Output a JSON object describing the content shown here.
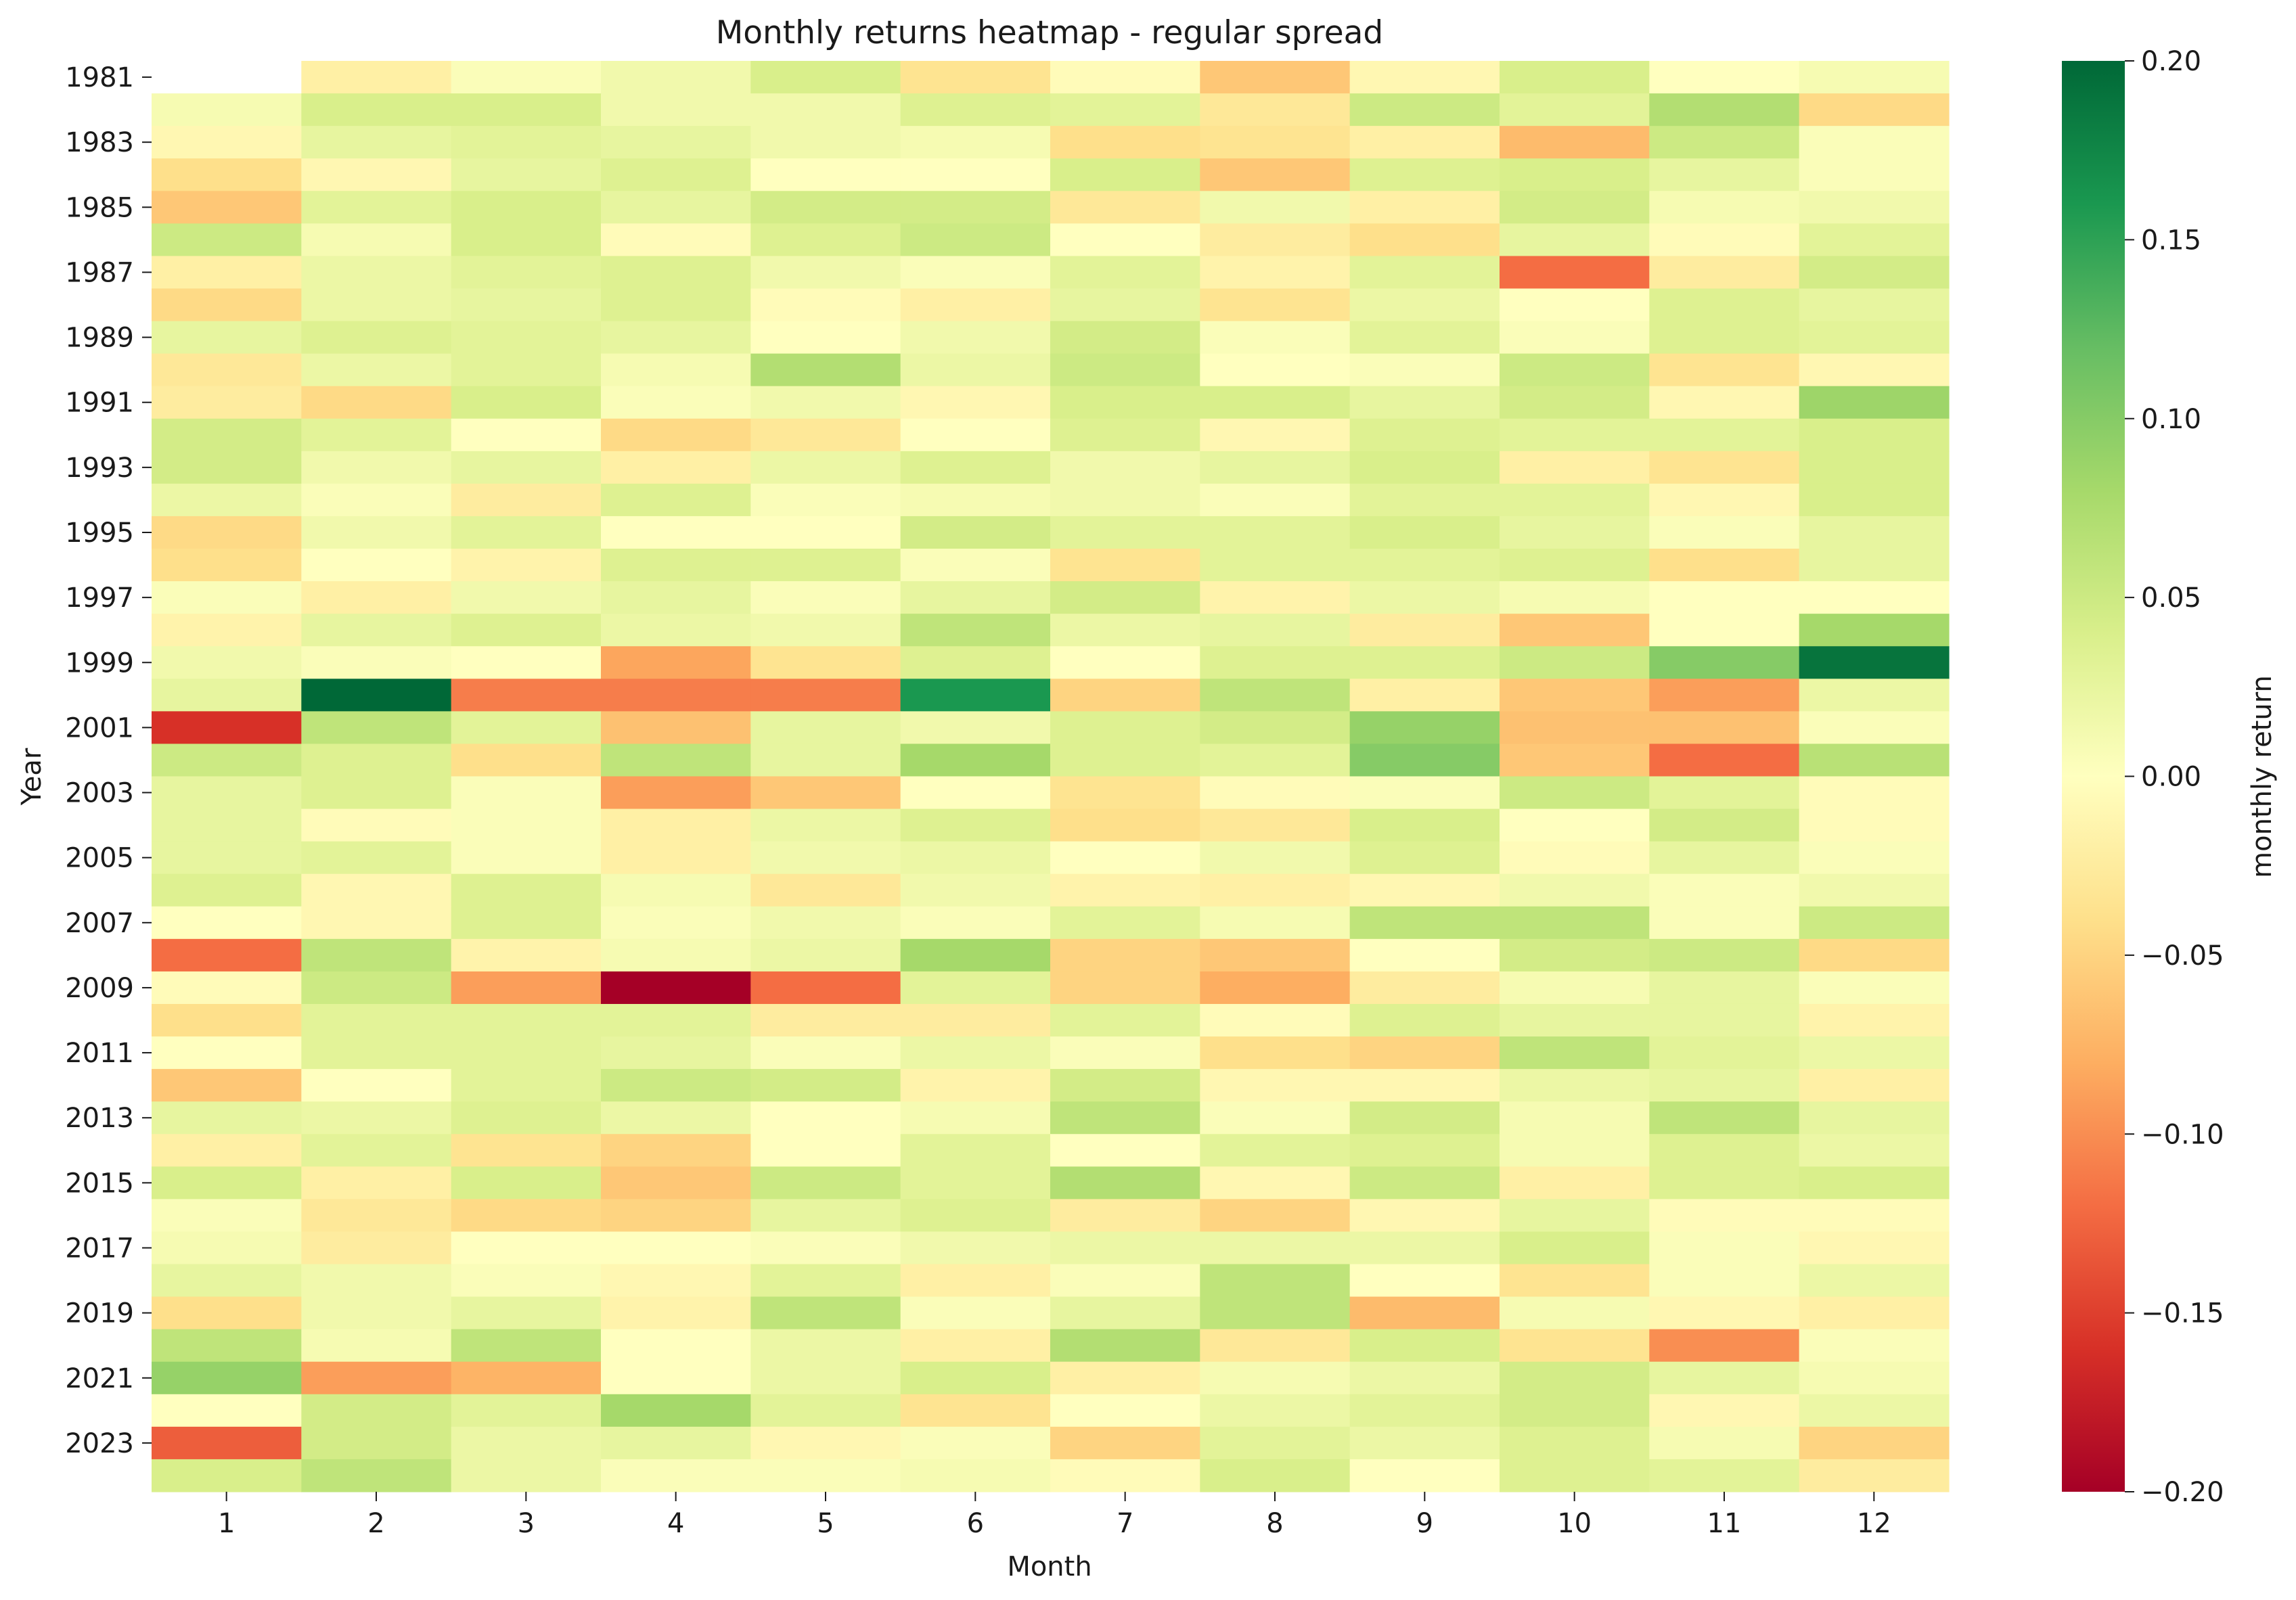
{
  "chart_data": {
    "type": "heatmap",
    "title": "Monthly returns heatmap - regular spread",
    "xlabel": "Month",
    "ylabel": "Year",
    "colorbar_label": "monthly return",
    "colormap": "RdYlGn",
    "vmin": -0.2,
    "vmax": 0.2,
    "colorbar_ticks": [
      "0.20",
      "0.15",
      "0.10",
      "0.05",
      "0.00",
      "−0.05",
      "−0.10",
      "−0.15",
      "−0.20"
    ],
    "colorbar_tick_values": [
      0.2,
      0.15,
      0.1,
      0.05,
      0.0,
      -0.05,
      -0.1,
      -0.15,
      -0.2
    ],
    "x": [
      1,
      2,
      3,
      4,
      5,
      6,
      7,
      8,
      9,
      10,
      11,
      12
    ],
    "x_tick_labels": [
      "1",
      "2",
      "3",
      "4",
      "5",
      "6",
      "7",
      "8",
      "9",
      "10",
      "11",
      "12"
    ],
    "y": [
      1981,
      1982,
      1983,
      1984,
      1985,
      1986,
      1987,
      1988,
      1989,
      1990,
      1991,
      1992,
      1993,
      1994,
      1995,
      1996,
      1997,
      1998,
      1999,
      2000,
      2001,
      2002,
      2003,
      2004,
      2005,
      2006,
      2007,
      2008,
      2009,
      2010,
      2011,
      2012,
      2013,
      2014,
      2015,
      2016,
      2017,
      2018,
      2019,
      2020,
      2021,
      2022,
      2023,
      2024
    ],
    "y_tick_labels": [
      "1981",
      "1983",
      "1985",
      "1987",
      "1989",
      "1991",
      "1993",
      "1995",
      "1997",
      "1999",
      "2001",
      "2003",
      "2005",
      "2007",
      "2009",
      "2011",
      "2013",
      "2015",
      "2017",
      "2019",
      "2021",
      "2023"
    ],
    "values": [
      [
        null,
        -0.02,
        0.005,
        0.015,
        0.04,
        -0.035,
        -0.005,
        -0.06,
        -0.01,
        0.04,
        0.0,
        0.01
      ],
      [
        0.01,
        0.04,
        0.04,
        0.015,
        0.015,
        0.035,
        0.03,
        -0.03,
        0.05,
        0.03,
        0.07,
        -0.045
      ],
      [
        -0.01,
        0.025,
        0.03,
        0.025,
        0.015,
        0.01,
        -0.04,
        -0.035,
        -0.02,
        -0.07,
        0.05,
        0.005
      ],
      [
        -0.04,
        -0.01,
        0.025,
        0.035,
        0.0,
        0.0,
        0.04,
        -0.06,
        0.035,
        0.04,
        0.025,
        0.005
      ],
      [
        -0.06,
        0.03,
        0.04,
        0.025,
        0.045,
        0.045,
        -0.03,
        0.015,
        -0.02,
        0.045,
        0.01,
        0.015
      ],
      [
        0.05,
        0.01,
        0.04,
        -0.005,
        0.035,
        0.05,
        0.0,
        -0.025,
        -0.04,
        0.025,
        -0.005,
        0.03
      ],
      [
        -0.02,
        0.02,
        0.03,
        0.035,
        0.015,
        0.005,
        0.03,
        -0.015,
        0.03,
        -0.12,
        -0.025,
        0.045
      ],
      [
        -0.045,
        0.02,
        0.025,
        0.035,
        -0.005,
        -0.02,
        0.025,
        -0.035,
        0.02,
        0.0,
        0.035,
        0.025
      ],
      [
        0.025,
        0.035,
        0.03,
        0.025,
        0.0,
        0.015,
        0.045,
        0.005,
        0.03,
        0.005,
        0.035,
        0.03
      ],
      [
        -0.03,
        0.02,
        0.03,
        0.01,
        0.07,
        0.02,
        0.05,
        0.0,
        0.005,
        0.05,
        -0.035,
        -0.01
      ],
      [
        -0.025,
        -0.045,
        0.04,
        0.005,
        0.015,
        -0.01,
        0.04,
        0.04,
        0.025,
        0.045,
        -0.01,
        0.085
      ],
      [
        0.045,
        0.03,
        0.0,
        -0.045,
        -0.03,
        0.0,
        0.035,
        -0.01,
        0.035,
        0.03,
        0.03,
        0.04
      ],
      [
        0.045,
        0.015,
        0.025,
        -0.02,
        0.02,
        0.035,
        0.015,
        0.025,
        0.04,
        -0.02,
        -0.035,
        0.04
      ],
      [
        0.02,
        0.005,
        -0.025,
        0.035,
        0.005,
        0.01,
        0.015,
        0.005,
        0.03,
        0.03,
        -0.01,
        0.04
      ],
      [
        -0.045,
        0.015,
        0.03,
        0.0,
        0.0,
        0.045,
        0.03,
        0.03,
        0.04,
        0.025,
        0.005,
        0.025
      ],
      [
        -0.04,
        0.0,
        -0.015,
        0.035,
        0.035,
        0.005,
        -0.035,
        0.03,
        0.03,
        0.035,
        -0.04,
        0.025
      ],
      [
        0.005,
        -0.02,
        0.015,
        0.025,
        0.005,
        0.025,
        0.045,
        -0.015,
        0.02,
        0.01,
        0.0,
        0.0
      ],
      [
        -0.015,
        0.025,
        0.035,
        0.02,
        0.015,
        0.06,
        0.02,
        0.025,
        -0.025,
        -0.06,
        0.0,
        0.08
      ],
      [
        0.015,
        0.005,
        0.0,
        -0.085,
        -0.035,
        0.035,
        0.0,
        0.035,
        0.035,
        0.05,
        0.1,
        0.19
      ],
      [
        0.025,
        0.2,
        -0.11,
        -0.11,
        -0.11,
        0.16,
        -0.05,
        0.06,
        -0.02,
        -0.06,
        -0.09,
        0.02
      ],
      [
        -0.16,
        0.06,
        0.03,
        -0.065,
        0.025,
        0.015,
        0.035,
        0.045,
        0.09,
        -0.065,
        -0.065,
        0.005
      ],
      [
        0.05,
        0.035,
        -0.04,
        0.06,
        0.025,
        0.08,
        0.035,
        0.03,
        0.1,
        -0.06,
        -0.12,
        0.065
      ],
      [
        0.025,
        0.035,
        0.005,
        -0.09,
        -0.06,
        0.0,
        -0.035,
        -0.005,
        0.005,
        0.05,
        0.03,
        -0.005
      ],
      [
        0.025,
        -0.005,
        0.005,
        -0.02,
        0.02,
        0.035,
        -0.04,
        -0.03,
        0.04,
        0.0,
        0.045,
        -0.005
      ],
      [
        0.025,
        0.03,
        0.005,
        -0.02,
        0.015,
        0.02,
        0.0,
        0.015,
        0.035,
        -0.005,
        0.025,
        0.005
      ],
      [
        0.035,
        -0.01,
        0.035,
        0.01,
        -0.03,
        0.015,
        -0.015,
        -0.02,
        -0.01,
        0.015,
        0.005,
        0.015
      ],
      [
        0.0,
        -0.01,
        0.035,
        0.005,
        0.015,
        0.005,
        0.03,
        0.01,
        0.06,
        0.06,
        0.005,
        0.05
      ],
      [
        -0.12,
        0.06,
        -0.015,
        0.01,
        0.02,
        0.08,
        -0.05,
        -0.06,
        0.0,
        0.045,
        0.05,
        -0.045
      ],
      [
        -0.005,
        0.05,
        -0.09,
        -0.2,
        -0.12,
        0.03,
        -0.05,
        -0.08,
        -0.025,
        0.01,
        0.025,
        0.005
      ],
      [
        -0.04,
        0.03,
        0.03,
        0.03,
        -0.025,
        -0.025,
        0.03,
        -0.005,
        0.035,
        0.025,
        0.025,
        -0.015
      ],
      [
        0.0,
        0.03,
        0.03,
        0.025,
        0.005,
        0.02,
        0.005,
        -0.04,
        -0.05,
        0.06,
        0.03,
        0.02
      ],
      [
        -0.06,
        0.0,
        0.03,
        0.05,
        0.045,
        -0.015,
        0.045,
        -0.01,
        -0.01,
        0.02,
        0.025,
        -0.02
      ],
      [
        0.025,
        0.02,
        0.035,
        0.02,
        0.0,
        0.01,
        0.06,
        0.005,
        0.045,
        0.01,
        0.06,
        0.025
      ],
      [
        -0.02,
        0.03,
        -0.035,
        -0.05,
        0.0,
        0.03,
        0.0,
        0.03,
        0.035,
        0.01,
        0.035,
        0.02
      ],
      [
        0.04,
        -0.02,
        0.04,
        -0.06,
        0.05,
        0.03,
        0.07,
        -0.01,
        0.05,
        -0.02,
        0.035,
        0.04
      ],
      [
        0.005,
        -0.03,
        -0.045,
        -0.05,
        0.025,
        0.035,
        -0.025,
        -0.05,
        -0.01,
        0.025,
        -0.005,
        -0.005
      ],
      [
        0.01,
        -0.025,
        0.0,
        0.0,
        0.005,
        0.015,
        0.02,
        0.02,
        0.02,
        0.04,
        0.005,
        -0.01
      ],
      [
        0.025,
        0.015,
        0.005,
        -0.01,
        0.03,
        -0.02,
        0.005,
        0.06,
        0.0,
        -0.035,
        0.005,
        0.02
      ],
      [
        -0.04,
        0.015,
        0.025,
        -0.015,
        0.06,
        0.005,
        0.025,
        0.06,
        -0.07,
        0.01,
        -0.01,
        -0.02
      ],
      [
        0.06,
        0.01,
        0.06,
        0.0,
        0.02,
        -0.02,
        0.07,
        -0.03,
        0.04,
        -0.035,
        -0.1,
        0.005
      ],
      [
        0.09,
        -0.09,
        -0.075,
        0.0,
        0.02,
        0.04,
        -0.02,
        0.01,
        0.02,
        0.045,
        0.025,
        0.01
      ],
      [
        0.0,
        0.045,
        0.03,
        0.08,
        0.03,
        -0.035,
        0.0,
        0.02,
        0.03,
        0.045,
        -0.01,
        0.02
      ],
      [
        -0.13,
        0.045,
        0.02,
        0.025,
        -0.01,
        0.005,
        -0.05,
        0.03,
        0.02,
        0.035,
        0.01,
        -0.05
      ],
      [
        0.04,
        0.06,
        0.02,
        0.005,
        0.005,
        0.01,
        -0.005,
        0.04,
        0.0,
        0.035,
        0.03,
        -0.025
      ]
    ]
  }
}
